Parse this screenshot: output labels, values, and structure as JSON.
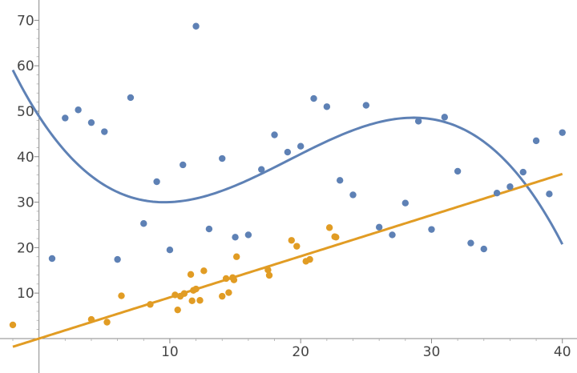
{
  "chart_data": {
    "type": "scatter",
    "title": "",
    "xlabel": "",
    "ylabel": "",
    "xlim": [
      -2,
      40.2
    ],
    "ylim": [
      -3,
      72
    ],
    "xticks": [
      10,
      20,
      30,
      40
    ],
    "yticks": [
      10,
      20,
      30,
      40,
      50,
      60,
      70
    ],
    "x_tick_labels": [
      "10",
      "20",
      "30",
      "40"
    ],
    "y_tick_labels": [
      "10",
      "20",
      "30",
      "40",
      "50",
      "60",
      "70"
    ],
    "grid": false,
    "legend": "none",
    "series": [
      {
        "color": "#5e81b5",
        "points": [
          [
            1,
            17.6
          ],
          [
            2,
            48.5
          ],
          [
            3,
            50.3
          ],
          [
            4,
            47.5
          ],
          [
            5,
            45.5
          ],
          [
            6,
            17.4
          ],
          [
            7,
            53.0
          ],
          [
            8,
            25.3
          ],
          [
            9,
            34.5
          ],
          [
            10,
            19.5
          ],
          [
            11,
            38.2
          ],
          [
            12,
            68.7
          ],
          [
            13,
            24.1
          ],
          [
            14,
            39.6
          ],
          [
            15,
            22.3
          ],
          [
            16,
            22.8
          ],
          [
            17,
            37.2
          ],
          [
            18,
            44.8
          ],
          [
            19,
            41.0
          ],
          [
            20,
            42.3
          ],
          [
            21,
            52.8
          ],
          [
            22,
            51.0
          ],
          [
            23,
            34.8
          ],
          [
            24,
            31.6
          ],
          [
            25,
            51.3
          ],
          [
            26,
            24.5
          ],
          [
            27,
            22.8
          ],
          [
            28,
            29.8
          ],
          [
            29,
            47.8
          ],
          [
            30,
            24.0
          ],
          [
            31,
            48.7
          ],
          [
            32,
            36.8
          ],
          [
            33,
            21.0
          ],
          [
            34,
            19.7
          ],
          [
            35,
            32.0
          ],
          [
            36,
            33.4
          ],
          [
            37,
            36.6
          ],
          [
            38,
            43.5
          ],
          [
            39,
            31.8
          ],
          [
            40,
            45.3
          ]
        ],
        "fit": {
          "kind": "cubic",
          "coefficients": [
            48.9,
            -4.44,
            0.309,
            -0.00539
          ]
        }
      },
      {
        "color": "#e19c24",
        "points": [
          [
            -2,
            3.0
          ],
          [
            4,
            4.2
          ],
          [
            5.2,
            3.6
          ],
          [
            6.3,
            9.4
          ],
          [
            8.5,
            7.5
          ],
          [
            10.4,
            9.6
          ],
          [
            10.6,
            6.3
          ],
          [
            10.8,
            9.3
          ],
          [
            11.1,
            9.9
          ],
          [
            11.6,
            14.1
          ],
          [
            11.7,
            8.3
          ],
          [
            11.8,
            10.6
          ],
          [
            12.0,
            10.9
          ],
          [
            12.3,
            8.4
          ],
          [
            12.6,
            14.9
          ],
          [
            14.0,
            9.3
          ],
          [
            14.3,
            13.2
          ],
          [
            14.5,
            10.1
          ],
          [
            14.8,
            13.4
          ],
          [
            14.9,
            12.9
          ],
          [
            15.1,
            18.0
          ],
          [
            17.5,
            15.1
          ],
          [
            17.6,
            13.9
          ],
          [
            19.3,
            21.6
          ],
          [
            19.7,
            20.3
          ],
          [
            20.4,
            17.0
          ],
          [
            20.7,
            17.4
          ],
          [
            22.2,
            24.4
          ],
          [
            22.6,
            22.4
          ],
          [
            22.7,
            22.3
          ]
        ],
        "fit": {
          "kind": "linear",
          "coefficients": [
            0.0,
            0.905
          ]
        }
      }
    ]
  }
}
